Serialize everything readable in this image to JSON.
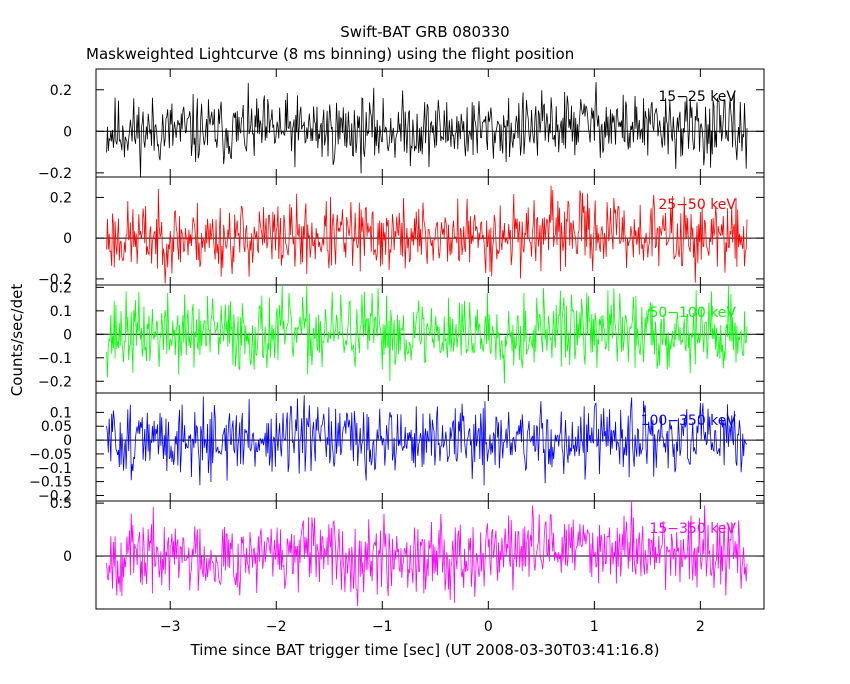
{
  "chart_data": {
    "type": "line",
    "title": "Swift-BAT GRB 080330",
    "subtitle": "Maskweighted Lightcurve (8 ms binning) using the flight position",
    "xlabel": "Time since BAT trigger time [sec] (UT 2008-03-30T03:41:16.8)",
    "ylabel": "Counts/sec/det",
    "xlim": [
      -3.7,
      2.6
    ],
    "x_ticks": [
      -3,
      -2,
      -1,
      0,
      1,
      2
    ],
    "x_tick_labels": [
      "−3",
      "−2",
      "−1",
      "0",
      "1",
      "2"
    ],
    "data_x_range": [
      -3.6,
      2.44
    ],
    "bin_width_s": 0.008,
    "reference_line_y": 0,
    "panels": [
      {
        "band": "15−25 keV",
        "color": "#000000",
        "ylim": [
          -0.22,
          0.3
        ],
        "y_ticks": [
          0.2,
          0,
          -0.2
        ],
        "y_tick_labels": [
          "0.2",
          "0",
          "−0.2"
        ],
        "noise_amplitude": 0.14,
        "seed": 11,
        "trend": [
          [
            -3.6,
            0.0
          ],
          [
            0.4,
            0.01
          ],
          [
            0.7,
            0.03
          ],
          [
            1.0,
            0.05
          ],
          [
            1.3,
            0.02
          ],
          [
            2.44,
            0.0
          ]
        ]
      },
      {
        "band": "25−50 keV",
        "color": "#ff0000",
        "ylim": [
          -0.23,
          0.3
        ],
        "y_ticks": [
          0.2,
          0,
          -0.2
        ],
        "y_tick_labels": [
          "0.2",
          "0",
          "−0.2"
        ],
        "noise_amplitude": 0.15,
        "seed": 23,
        "trend": [
          [
            -3.6,
            0.0
          ],
          [
            0.0,
            0.01
          ],
          [
            0.5,
            0.03
          ],
          [
            0.9,
            0.04
          ],
          [
            1.4,
            0.02
          ],
          [
            2.44,
            0.0
          ]
        ]
      },
      {
        "band": "50−100 keV",
        "color": "#00ff00",
        "ylim": [
          -0.25,
          0.21
        ],
        "y_ticks": [
          0.2,
          0.1,
          0,
          -0.1,
          -0.2
        ],
        "y_tick_labels": [
          "0.2",
          "0.1",
          "0",
          "−0.1",
          "−0.2"
        ],
        "noise_amplitude": 0.14,
        "seed": 37,
        "trend": [
          [
            -3.6,
            0.0
          ],
          [
            0.3,
            0.01
          ],
          [
            0.8,
            0.02
          ],
          [
            2.44,
            0.0
          ]
        ]
      },
      {
        "band": "100−350 keV",
        "color": "#0000ff",
        "ylim": [
          -0.22,
          0.17
        ],
        "y_ticks": [
          0.1,
          0.05,
          0,
          -0.05,
          -0.1,
          -0.15,
          -0.2
        ],
        "y_tick_labels": [
          "0.1",
          "0.05",
          "0",
          "−0.05",
          "−0.1",
          "−0.15",
          "−0.2"
        ],
        "noise_amplitude": 0.11,
        "seed": 51,
        "trend": [
          [
            -3.6,
            0.0
          ],
          [
            2.44,
            0.0
          ]
        ]
      },
      {
        "band": "15−350 keV",
        "color": "#ff00ff",
        "ylim": [
          -0.5,
          0.52
        ],
        "y_ticks": [
          0.5,
          0
        ],
        "y_tick_labels": [
          "0.5",
          "0"
        ],
        "noise_amplitude": 0.3,
        "seed": 67,
        "trend": [
          [
            -3.6,
            0.0
          ],
          [
            -0.2,
            0.02
          ],
          [
            0.5,
            0.08
          ],
          [
            1.0,
            0.1
          ],
          [
            1.5,
            0.06
          ],
          [
            2.44,
            0.0
          ]
        ]
      }
    ],
    "grid": false,
    "legend": "none"
  }
}
